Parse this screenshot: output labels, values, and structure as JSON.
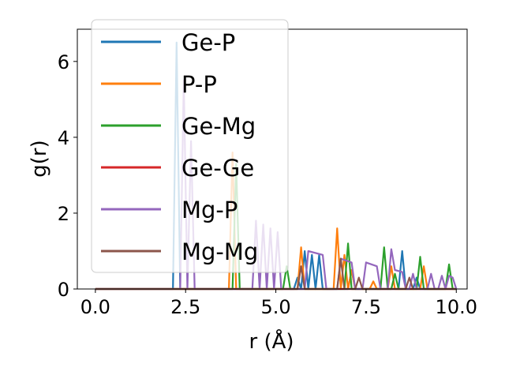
{
  "chart_data": {
    "type": "line",
    "title": "",
    "xlabel": "r (Å)",
    "ylabel": "g(r)",
    "xlim": [
      -0.5,
      10.3
    ],
    "ylim": [
      0,
      6.85
    ],
    "xticks": [
      0.0,
      2.5,
      5.0,
      7.5,
      10.0
    ],
    "xtick_labels": [
      "0.0",
      "2.5",
      "5.0",
      "7.5",
      "10.0"
    ],
    "yticks": [
      0,
      2,
      4,
      6
    ],
    "ytick_labels": [
      "0",
      "2",
      "4",
      "6"
    ],
    "grid": false,
    "legend_position": "top-left",
    "series": [
      {
        "name": "Ge-P",
        "color": "#1f77b4",
        "points": [
          [
            0.0,
            0
          ],
          [
            2.15,
            0
          ],
          [
            2.25,
            6.5
          ],
          [
            2.35,
            0
          ],
          [
            5.5,
            0
          ],
          [
            5.6,
            0.3
          ],
          [
            5.7,
            0
          ],
          [
            5.8,
            1.0
          ],
          [
            5.9,
            0
          ],
          [
            6.0,
            0.9
          ],
          [
            6.1,
            0
          ],
          [
            6.2,
            0.9
          ],
          [
            6.3,
            0
          ],
          [
            7.0,
            0
          ],
          [
            7.1,
            0.5
          ],
          [
            7.2,
            0
          ],
          [
            8.4,
            0
          ],
          [
            8.5,
            1.0
          ],
          [
            8.6,
            0
          ],
          [
            8.8,
            0
          ],
          [
            8.9,
            0.3
          ],
          [
            9.0,
            0
          ],
          [
            10.0,
            0
          ]
        ]
      },
      {
        "name": "P-P",
        "color": "#ff7f0e",
        "points": [
          [
            0.0,
            0
          ],
          [
            3.7,
            0
          ],
          [
            3.8,
            3.6
          ],
          [
            3.9,
            0
          ],
          [
            5.6,
            0
          ],
          [
            5.7,
            1.1
          ],
          [
            5.8,
            0
          ],
          [
            6.6,
            0
          ],
          [
            6.7,
            1.6
          ],
          [
            6.8,
            0
          ],
          [
            6.9,
            0.9
          ],
          [
            7.0,
            0
          ],
          [
            7.1,
            0.5
          ],
          [
            7.2,
            0
          ],
          [
            7.6,
            0
          ],
          [
            7.7,
            0.2
          ],
          [
            7.8,
            0
          ],
          [
            8.1,
            0
          ],
          [
            8.2,
            0.6
          ],
          [
            8.3,
            0
          ],
          [
            9.0,
            0
          ],
          [
            9.1,
            0.6
          ],
          [
            9.2,
            0
          ],
          [
            10.0,
            0
          ]
        ]
      },
      {
        "name": "Ge-Mg",
        "color": "#2ca02c",
        "points": [
          [
            0.0,
            0
          ],
          [
            3.8,
            0
          ],
          [
            3.9,
            3.3
          ],
          [
            4.0,
            0
          ],
          [
            5.2,
            0
          ],
          [
            5.3,
            0.6
          ],
          [
            5.4,
            0
          ],
          [
            6.9,
            0
          ],
          [
            7.0,
            1.2
          ],
          [
            7.1,
            0
          ],
          [
            7.9,
            0
          ],
          [
            8.0,
            1.1
          ],
          [
            8.1,
            0
          ],
          [
            8.2,
            0
          ],
          [
            8.3,
            0.4
          ],
          [
            8.4,
            0
          ],
          [
            8.9,
            0
          ],
          [
            9.0,
            0.85
          ],
          [
            9.1,
            0
          ],
          [
            9.7,
            0
          ],
          [
            9.8,
            0.65
          ],
          [
            9.9,
            0
          ],
          [
            10.0,
            0
          ]
        ]
      },
      {
        "name": "Ge-Ge",
        "color": "#d62728",
        "points": [
          [
            0.0,
            0
          ],
          [
            10.0,
            0
          ]
        ]
      },
      {
        "name": "Mg-P",
        "color": "#9467bd",
        "points": [
          [
            0.0,
            0
          ],
          [
            2.35,
            0
          ],
          [
            2.45,
            5.5
          ],
          [
            2.55,
            0
          ],
          [
            2.65,
            3.9
          ],
          [
            2.75,
            0
          ],
          [
            4.35,
            0
          ],
          [
            4.45,
            1.8
          ],
          [
            4.55,
            0
          ],
          [
            4.65,
            1.7
          ],
          [
            4.75,
            0
          ],
          [
            4.85,
            1.6
          ],
          [
            4.95,
            0
          ],
          [
            5.05,
            1.5
          ],
          [
            5.15,
            0
          ],
          [
            5.8,
            0
          ],
          [
            5.9,
            1.0
          ],
          [
            6.3,
            0.9
          ],
          [
            6.4,
            0
          ],
          [
            6.7,
            0
          ],
          [
            6.8,
            0.8
          ],
          [
            7.1,
            0.7
          ],
          [
            7.2,
            0
          ],
          [
            7.4,
            0
          ],
          [
            7.5,
            0.7
          ],
          [
            7.8,
            0.6
          ],
          [
            7.9,
            0
          ],
          [
            8.1,
            0
          ],
          [
            8.2,
            1.05
          ],
          [
            8.3,
            0.5
          ],
          [
            8.5,
            0.45
          ],
          [
            8.6,
            0
          ],
          [
            8.7,
            0
          ],
          [
            8.8,
            0.4
          ],
          [
            8.9,
            0
          ],
          [
            9.2,
            0
          ],
          [
            9.3,
            0.4
          ],
          [
            9.4,
            0
          ],
          [
            9.5,
            0
          ],
          [
            9.6,
            0.35
          ],
          [
            9.7,
            0
          ],
          [
            9.8,
            0.35
          ],
          [
            9.9,
            0.3
          ],
          [
            10.0,
            0
          ]
        ]
      },
      {
        "name": "Mg-Mg",
        "color": "#8c564b",
        "points": [
          [
            0.0,
            0
          ],
          [
            5.6,
            0
          ],
          [
            5.7,
            0.6
          ],
          [
            5.8,
            0
          ],
          [
            6.7,
            0
          ],
          [
            6.8,
            0.8
          ],
          [
            6.9,
            0
          ],
          [
            7.2,
            0
          ],
          [
            7.3,
            0.3
          ],
          [
            7.4,
            0
          ],
          [
            8.6,
            0
          ],
          [
            8.7,
            0.3
          ],
          [
            8.8,
            0
          ],
          [
            10.0,
            0
          ]
        ]
      }
    ]
  }
}
